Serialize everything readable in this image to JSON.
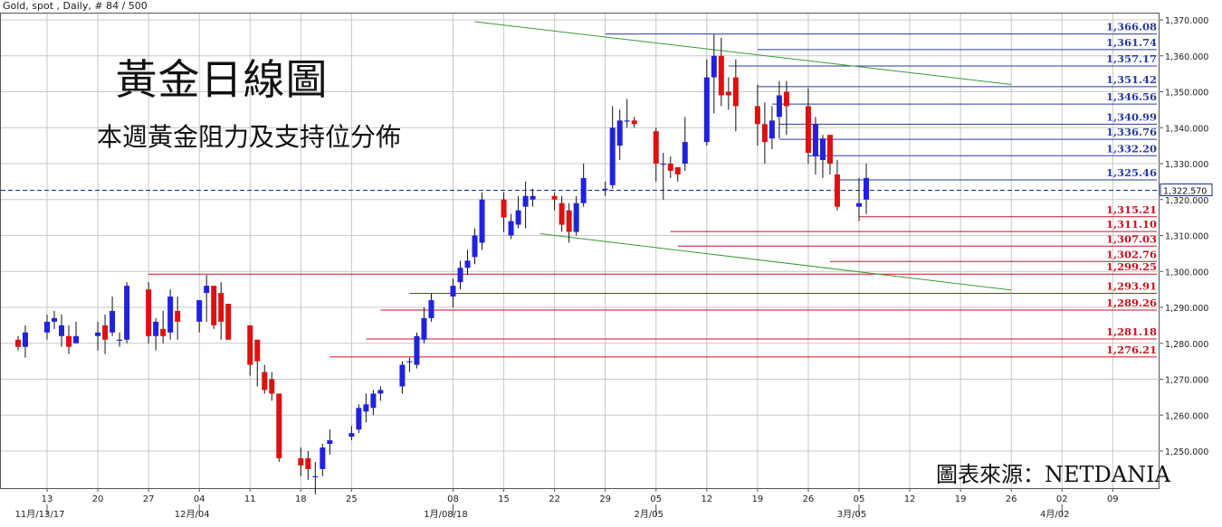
{
  "header": {
    "text": "Gold, spot , Daily, # 84 / 500"
  },
  "title": "黃金日線圖",
  "subtitle": "本週黃金阻力及支持位分佈",
  "source_note": "圖表來源：NETDANIA",
  "colors": {
    "bull": "#2222dd",
    "bear": "#dd1111",
    "resistance": "#2a3aa0",
    "support": "#cc1122",
    "trend": "#3a9a3a",
    "grid": "#c8c8c8",
    "current": "#1b2b8a"
  },
  "chart_data": {
    "type": "candlestick",
    "instrument": "Gold, spot",
    "interval": "Daily",
    "ylim": [
      1244,
      1372
    ],
    "yticks": [
      "1,250.000",
      "1,260.000",
      "1,270.000",
      "1,280.000",
      "1,290.000",
      "1,300.000",
      "1,310.000",
      "1,320.000",
      "1,330.000",
      "1,340.000",
      "1,350.000",
      "1,360.000",
      "1,370.000"
    ],
    "ytick_values": [
      1250,
      1260,
      1270,
      1280,
      1290,
      1300,
      1310,
      1320,
      1330,
      1340,
      1350,
      1360,
      1370
    ],
    "xticks": [
      "13",
      "20",
      "27",
      "04",
      "11",
      "18",
      "25",
      "08",
      "15",
      "22",
      "29",
      "05",
      "12",
      "19",
      "26",
      "05",
      "12",
      "19",
      "26",
      "02",
      "09"
    ],
    "xtick_dates": [
      "2017-11-13",
      "2017-11-20",
      "2017-11-27",
      "2017-12-04",
      "2017-12-11",
      "2017-12-18",
      "2017-12-25",
      "2018-01-08",
      "2018-01-15",
      "2018-01-22",
      "2018-01-29",
      "2018-02-05",
      "2018-02-12",
      "2018-02-19",
      "2018-02-26",
      "2018-03-05",
      "2018-03-12",
      "2018-03-19",
      "2018-03-26",
      "2018-04-02",
      "2018-04-09"
    ],
    "month_labels": [
      {
        "date": "2017-11-13",
        "label": "11月/13/17"
      },
      {
        "date": "2017-12-04",
        "label": "12月/04"
      },
      {
        "date": "2018-01-08",
        "label": "1月/08/18"
      },
      {
        "date": "2018-02-05",
        "label": "2月/05"
      },
      {
        "date": "2018-03-05",
        "label": "3月/05"
      },
      {
        "date": "2018-04-02",
        "label": "4月/02"
      }
    ],
    "current_price": {
      "value": 1322.57,
      "label": "1,322.570"
    },
    "resistance_levels": [
      {
        "label": "1,366.08",
        "value": 1366.08,
        "from": "2018-01-29"
      },
      {
        "label": "1,361.74",
        "value": 1361.74,
        "from": "2018-02-19"
      },
      {
        "label": "1,357.17",
        "value": 1357.17,
        "from": "2018-02-15"
      },
      {
        "label": "1,351.42",
        "value": 1351.42,
        "from": "2018-02-19"
      },
      {
        "label": "1,346.56",
        "value": 1346.56,
        "from": "2018-02-21"
      },
      {
        "label": "1,340.99",
        "value": 1340.99,
        "from": "2018-02-22"
      },
      {
        "label": "1,336.76",
        "value": 1336.76,
        "from": "2018-02-22"
      },
      {
        "label": "1,332.20",
        "value": 1332.2,
        "from": "2018-02-26"
      },
      {
        "label": "1,325.46",
        "value": 1325.46,
        "from": "2018-03-02"
      }
    ],
    "support_levels": [
      {
        "label": "1,315.21",
        "value": 1315.21,
        "from": "2018-03-05"
      },
      {
        "label": "1,311.10",
        "value": 1311.1,
        "from": "2018-02-07"
      },
      {
        "label": "1,307.03",
        "value": 1307.03,
        "from": "2018-02-08"
      },
      {
        "label": "1,302.76",
        "value": 1302.76,
        "from": "2018-03-01"
      },
      {
        "label": "1,299.25",
        "value": 1299.25,
        "from": "2017-11-27"
      },
      {
        "label": "1,293.91",
        "value": 1293.91,
        "from": "2018-01-02"
      },
      {
        "label": "1,289.26",
        "value": 1289.26,
        "from": "2017-12-29"
      },
      {
        "label": "1,281.18",
        "value": 1281.18,
        "from": "2017-12-27"
      },
      {
        "label": "1,276.21",
        "value": 1276.21,
        "from": "2017-12-22"
      }
    ],
    "trendlines": [
      {
        "from": {
          "date": "2018-01-11",
          "value": 1369.5
        },
        "to": {
          "date": "2018-03-26",
          "value": 1352.0
        }
      },
      {
        "from": {
          "date": "2018-01-20",
          "value": 1310.5
        },
        "to": {
          "date": "2018-03-26",
          "value": 1294.8
        }
      }
    ],
    "candles": [
      [
        "2017-11-09",
        1281,
        1282,
        1278,
        1279
      ],
      [
        "2017-11-10",
        1279,
        1285,
        1276,
        1283
      ],
      [
        "2017-11-13",
        1283,
        1288,
        1281,
        1286
      ],
      [
        "2017-11-14",
        1286,
        1289,
        1284,
        1287
      ],
      [
        "2017-11-15",
        1282,
        1288,
        1279,
        1285
      ],
      [
        "2017-11-16",
        1282,
        1285,
        1277,
        1279
      ],
      [
        "2017-11-17",
        1280,
        1286,
        1280,
        1282
      ],
      [
        "2017-11-20",
        1282,
        1286,
        1278,
        1283
      ],
      [
        "2017-11-21",
        1285,
        1288,
        1277,
        1281
      ],
      [
        "2017-11-22",
        1283,
        1293,
        1282,
        1289
      ],
      [
        "2017-11-23",
        1281,
        1283,
        1279,
        1281
      ],
      [
        "2017-11-24",
        1281,
        1297,
        1280,
        1296
      ],
      [
        "2017-11-27",
        1295,
        1297,
        1280,
        1282
      ],
      [
        "2017-11-28",
        1282,
        1287,
        1278,
        1286
      ],
      [
        "2017-11-29",
        1284,
        1289,
        1280,
        1282
      ],
      [
        "2017-11-30",
        1283,
        1295,
        1281,
        1293
      ],
      [
        "2017-12-01",
        1289,
        1293,
        1281,
        1286
      ],
      [
        "2017-12-04",
        1286,
        1292,
        1283,
        1292
      ],
      [
        "2017-12-05",
        1294,
        1299,
        1286,
        1296
      ],
      [
        "2017-12-06",
        1296,
        1296,
        1284,
        1285
      ],
      [
        "2017-12-07",
        1294,
        1297,
        1281,
        1286
      ],
      [
        "2017-12-08",
        1291,
        1291,
        1281,
        1281
      ],
      [
        "2017-12-11",
        1285,
        1285,
        1271,
        1274
      ],
      [
        "2017-12-12",
        1281,
        1281,
        1268,
        1275
      ],
      [
        "2017-12-13",
        1272,
        1274,
        1266,
        1267
      ],
      [
        "2017-12-14",
        1270,
        1272,
        1264,
        1266
      ],
      [
        "2017-12-15",
        1266,
        1266,
        1247,
        1248
      ],
      [
        "2017-12-18",
        1248,
        1251,
        1243,
        1246
      ],
      [
        "2017-12-19",
        1248,
        1250,
        1242,
        1245
      ],
      [
        "2017-12-20",
        1243,
        1247,
        1238,
        1243
      ],
      [
        "2017-12-21",
        1245,
        1252,
        1243,
        1251
      ],
      [
        "2017-12-22",
        1252,
        1256,
        1249,
        1253
      ],
      [
        "2017-12-25",
        1254,
        1257,
        1253,
        1255
      ],
      [
        "2017-12-26",
        1256,
        1263,
        1255,
        1262
      ],
      [
        "2017-12-27",
        1261,
        1266,
        1258,
        1263
      ],
      [
        "2017-12-28",
        1262,
        1267,
        1260,
        1266
      ],
      [
        "2017-12-29",
        1266,
        1268,
        1264,
        1267
      ],
      [
        "2018-01-01",
        1268,
        1275,
        1266,
        1274
      ],
      [
        "2018-01-02",
        1275,
        1276,
        1272,
        1275
      ],
      [
        "2018-01-03",
        1274,
        1283,
        1273,
        1282
      ],
      [
        "2018-01-04",
        1281,
        1290,
        1280,
        1287
      ],
      [
        "2018-01-05",
        1287,
        1294,
        1286,
        1292
      ],
      [
        "2018-01-08",
        1293,
        1298,
        1290,
        1296
      ],
      [
        "2018-01-09",
        1297,
        1303,
        1295,
        1301
      ],
      [
        "2018-01-10",
        1301,
        1306,
        1299,
        1303
      ],
      [
        "2018-01-11",
        1304,
        1312,
        1302,
        1310
      ],
      [
        "2018-01-12",
        1308,
        1322,
        1306,
        1320
      ],
      [
        "2018-01-15",
        1320,
        1322,
        1311,
        1315
      ],
      [
        "2018-01-16",
        1310,
        1316,
        1309,
        1314
      ],
      [
        "2018-01-17",
        1313,
        1321,
        1312,
        1317
      ],
      [
        "2018-01-18",
        1318,
        1325,
        1312,
        1321
      ],
      [
        "2018-01-19",
        1320,
        1323,
        1318,
        1321
      ],
      [
        "2018-01-22",
        1321,
        1322,
        1317,
        1320
      ],
      [
        "2018-01-23",
        1319,
        1321,
        1311,
        1313
      ],
      [
        "2018-01-24",
        1317,
        1319,
        1308,
        1311
      ],
      [
        "2018-01-25",
        1311,
        1321,
        1310,
        1319
      ],
      [
        "2018-01-26",
        1319,
        1330,
        1318,
        1326
      ],
      [
        "2018-01-29",
        1323,
        1325,
        1321,
        1323
      ],
      [
        "2018-01-30",
        1324,
        1346,
        1323,
        1340
      ],
      [
        "2018-01-31",
        1335,
        1345,
        1331,
        1342
      ],
      [
        "2018-02-01",
        1342,
        1348,
        1340,
        1342
      ],
      [
        "2018-02-02",
        1342,
        1343,
        1340,
        1341
      ],
      [
        "2018-02-05",
        1339,
        1340,
        1325,
        1330
      ],
      [
        "2018-02-06",
        1330,
        1333,
        1320,
        1330
      ],
      [
        "2018-02-07",
        1330,
        1332,
        1326,
        1328
      ],
      [
        "2018-02-08",
        1329,
        1329,
        1325,
        1327
      ],
      [
        "2018-02-09",
        1330,
        1343,
        1328,
        1336
      ],
      [
        "2018-02-12",
        1336,
        1359,
        1335,
        1354
      ],
      [
        "2018-02-13",
        1354,
        1366,
        1344,
        1360
      ],
      [
        "2018-02-14",
        1360,
        1365,
        1346,
        1349
      ],
      [
        "2018-02-15",
        1350,
        1354,
        1345,
        1349
      ],
      [
        "2018-02-16",
        1354,
        1359,
        1339,
        1346
      ],
      [
        "2018-02-19",
        1346,
        1352,
        1335,
        1341
      ],
      [
        "2018-02-20",
        1341,
        1347,
        1330,
        1336
      ],
      [
        "2018-02-21",
        1337,
        1346,
        1334,
        1342
      ],
      [
        "2018-02-22",
        1343,
        1353,
        1337,
        1349
      ],
      [
        "2018-02-23",
        1350,
        1353,
        1338,
        1346
      ],
      [
        "2018-02-26",
        1346,
        1351,
        1330,
        1333
      ],
      [
        "2018-02-27",
        1332,
        1343,
        1327,
        1341
      ],
      [
        "2018-02-28",
        1331,
        1338,
        1326,
        1337
      ],
      [
        "2018-03-01",
        1338,
        1338,
        1327,
        1330
      ],
      [
        "2018-03-02",
        1327,
        1331,
        1317,
        1318
      ],
      [
        "2018-03-05",
        1318,
        1326,
        1314,
        1319
      ],
      [
        "2018-03-06",
        1320,
        1330,
        1316,
        1326
      ]
    ]
  }
}
